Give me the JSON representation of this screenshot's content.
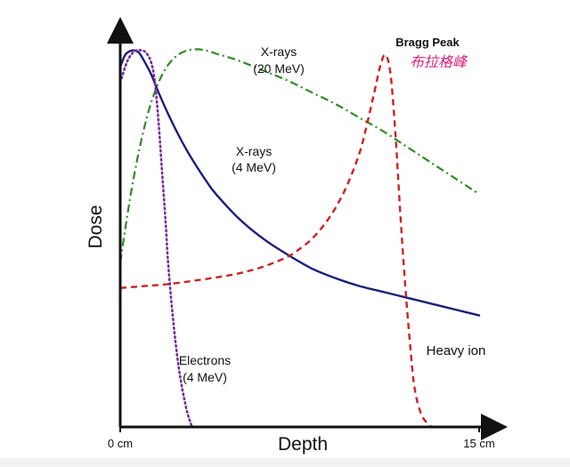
{
  "chart_data": {
    "type": "line",
    "title": "",
    "xlabel": "Depth",
    "ylabel": "Dose",
    "xlim": [
      0,
      15
    ],
    "ylim": [
      0,
      1.0
    ],
    "x_tick_labels": [
      {
        "x": 0,
        "label": "0 cm"
      },
      {
        "x": 15,
        "label": "15 cm"
      }
    ],
    "grid": false,
    "series": [
      {
        "name": "X-rays (20 MeV)",
        "style": "dash-dot",
        "color": "#2e8b22",
        "x": [
          0,
          0.4,
          0.8,
          1.2,
          1.6,
          2.0,
          2.4,
          2.8,
          3.2,
          3.6,
          4.0,
          4.5,
          5.0,
          6.0,
          7.0,
          8.0,
          9.0,
          10.0,
          11.0,
          12.0,
          13.0,
          14.0,
          15.0
        ],
        "y": [
          0.42,
          0.58,
          0.71,
          0.81,
          0.88,
          0.925,
          0.95,
          0.962,
          0.965,
          0.962,
          0.954,
          0.945,
          0.935,
          0.91,
          0.885,
          0.855,
          0.825,
          0.79,
          0.755,
          0.715,
          0.675,
          0.635,
          0.595
        ]
      },
      {
        "name": "X-rays (4 MeV)",
        "style": "solid",
        "color": "#1a1f7a",
        "x": [
          0,
          0.2,
          0.4,
          0.6,
          0.8,
          1.0,
          1.3,
          1.6,
          2.0,
          2.4,
          2.8,
          3.2,
          3.6,
          4.0,
          5.0,
          6.0,
          7.0,
          8.0,
          9.0,
          10.0,
          11.0,
          12.0,
          13.0,
          14.0,
          15.0
        ],
        "y": [
          0.92,
          0.95,
          0.96,
          0.962,
          0.955,
          0.935,
          0.9,
          0.855,
          0.8,
          0.75,
          0.705,
          0.665,
          0.628,
          0.595,
          0.53,
          0.48,
          0.44,
          0.405,
          0.38,
          0.36,
          0.345,
          0.33,
          0.315,
          0.3,
          0.285
        ]
      },
      {
        "name": "Electrons (4 MeV)",
        "style": "dotted",
        "color": "#7a2a9a",
        "x": [
          0,
          0.3,
          0.6,
          0.9,
          1.1,
          1.3,
          1.45,
          1.6,
          1.75,
          1.9,
          2.0,
          2.2,
          2.45,
          2.75,
          3.0
        ],
        "y": [
          0.88,
          0.935,
          0.96,
          0.962,
          0.955,
          0.93,
          0.88,
          0.78,
          0.65,
          0.52,
          0.42,
          0.28,
          0.15,
          0.05,
          0.0
        ]
      },
      {
        "name": "Heavy ion",
        "style": "dashed",
        "color": "#cc2222",
        "x": [
          0,
          1.0,
          2.0,
          3.0,
          4.0,
          5.0,
          6.0,
          7.0,
          7.5,
          8.0,
          8.5,
          9.0,
          9.5,
          10.0,
          10.3,
          10.6,
          10.9,
          11.1,
          11.3,
          11.5,
          11.7,
          11.9,
          12.1,
          12.3,
          12.6,
          13.0
        ],
        "y": [
          0.355,
          0.36,
          0.365,
          0.373,
          0.382,
          0.393,
          0.41,
          0.435,
          0.455,
          0.48,
          0.515,
          0.56,
          0.62,
          0.7,
          0.77,
          0.85,
          0.93,
          0.95,
          0.9,
          0.75,
          0.55,
          0.37,
          0.22,
          0.1,
          0.03,
          0.0
        ]
      }
    ],
    "annotations": [
      {
        "text": "X-rays",
        "attach": "X-rays (20 MeV)",
        "line": 1
      },
      {
        "text": "(20 MeV)",
        "attach": "X-rays (20 MeV)",
        "line": 2
      },
      {
        "text": "X-rays",
        "attach": "X-rays (4 MeV)",
        "line": 1
      },
      {
        "text": "(4 MeV)",
        "attach": "X-rays (4 MeV)",
        "line": 2
      },
      {
        "text": "Electrons",
        "attach": "Electrons (4 MeV)",
        "line": 1
      },
      {
        "text": "(4 MeV)",
        "attach": "Electrons (4 MeV)",
        "line": 2
      },
      {
        "text": "Heavy ion",
        "attach": "Heavy ion",
        "line": 1
      },
      {
        "text": "Bragg Peak",
        "attach": "peak-label",
        "line": 1
      },
      {
        "text": "布拉格峰",
        "attach": "peak-label-cn",
        "line": 1
      }
    ],
    "colors": {
      "axis": "#111111",
      "text": "#111111",
      "bragg_cn": "#e0207a",
      "background": "#ffffff"
    }
  }
}
